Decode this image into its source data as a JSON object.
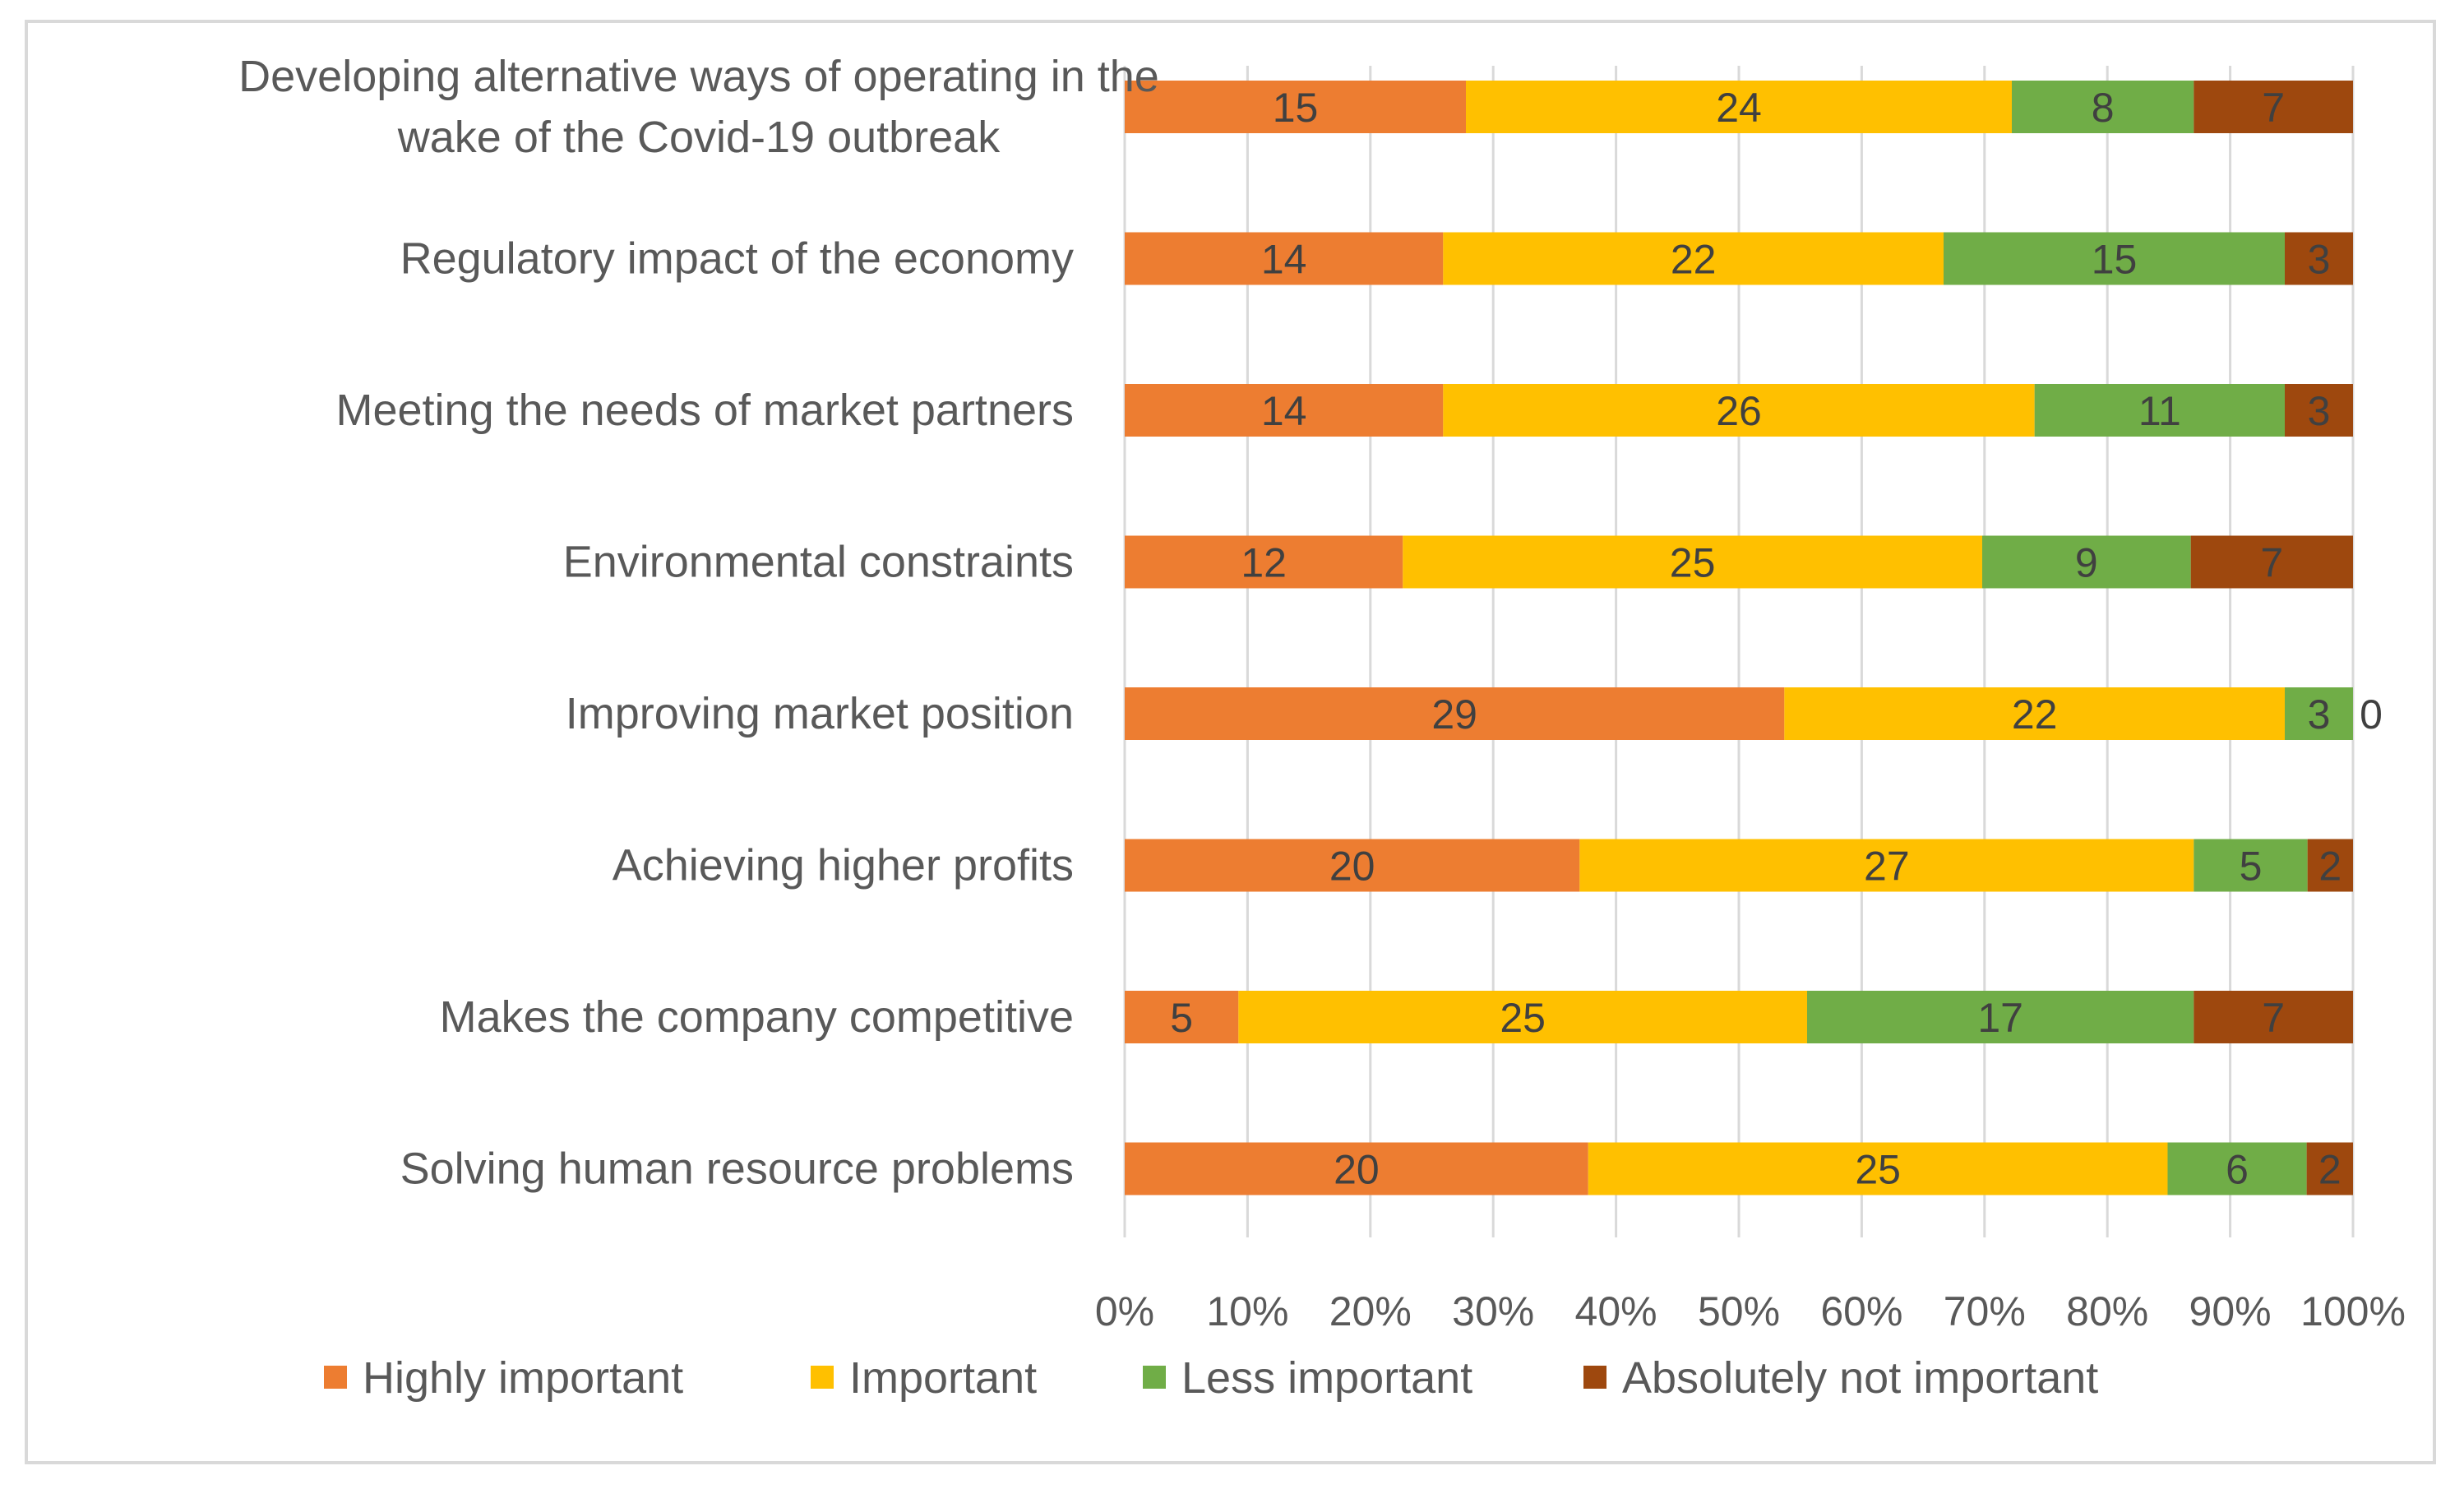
{
  "chart_data": {
    "type": "bar",
    "orientation": "horizontal",
    "stacked": "percent",
    "title": "",
    "xlabel": "",
    "ylabel": "",
    "xlim": [
      0,
      100
    ],
    "grid": true,
    "legend_position": "bottom",
    "categories": [
      [
        "Developing alternative ways of operating in the",
        "wake of the Covid-19 outbreak"
      ],
      [
        "Regulatory impact of the economy"
      ],
      [
        "Meeting the needs of market partners"
      ],
      [
        "Environmental constraints"
      ],
      [
        "Improving market position"
      ],
      [
        "Achieving higher profits"
      ],
      [
        "Makes the company competitive"
      ],
      [
        "Solving human resource problems"
      ]
    ],
    "x_ticks": [
      "0%",
      "10%",
      "20%",
      "30%",
      "40%",
      "50%",
      "60%",
      "70%",
      "80%",
      "90%",
      "100%"
    ],
    "series": [
      {
        "name": "Highly important",
        "color": "#ed7d31",
        "values": [
          15,
          14,
          14,
          12,
          29,
          20,
          5,
          20
        ]
      },
      {
        "name": "Important",
        "color": "#ffc000",
        "values": [
          24,
          22,
          26,
          25,
          22,
          27,
          25,
          25
        ]
      },
      {
        "name": "Less important",
        "color": "#70ad47",
        "values": [
          8,
          15,
          11,
          9,
          3,
          5,
          17,
          6
        ]
      },
      {
        "name": "Absolutely not important",
        "color": "#9e480e",
        "values": [
          7,
          3,
          3,
          7,
          0,
          2,
          7,
          2
        ]
      }
    ]
  }
}
